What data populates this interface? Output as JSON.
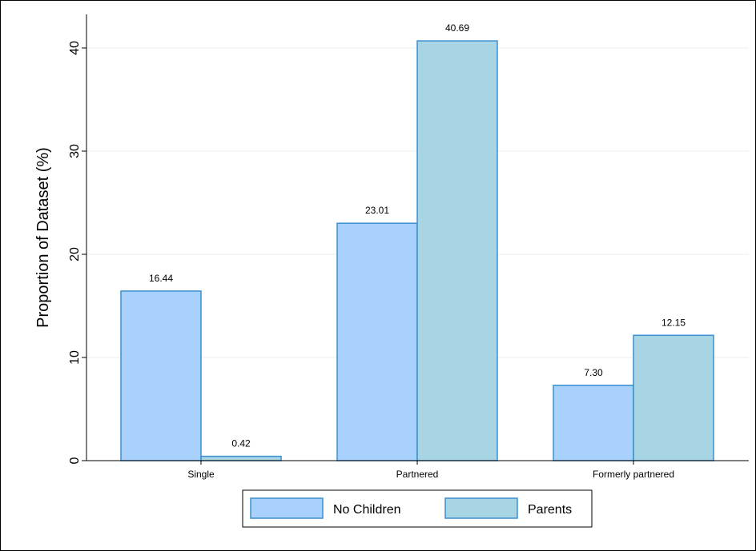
{
  "chart_data": {
    "type": "bar",
    "title": "",
    "xlabel": "",
    "ylabel": "Proportion of Dataset (%)",
    "categories": [
      "Single",
      "Partnered",
      "Formerly partnered"
    ],
    "series": [
      {
        "name": "No Children",
        "values": [
          16.44,
          23.01,
          7.3
        ],
        "labels": [
          "16.44",
          "23.01",
          "7.30"
        ],
        "color": "#a8d2fd"
      },
      {
        "name": "Parents",
        "values": [
          0.42,
          40.69,
          12.15
        ],
        "labels": [
          "0.42",
          "40.69",
          "12.15"
        ],
        "color": "#a8d5e4"
      }
    ],
    "bar_edge_color": "#3b8fcf",
    "ylim": [
      0,
      42
    ],
    "yticks": [
      0,
      10,
      20,
      30,
      40
    ],
    "grid": true,
    "legend_position": "bottom"
  }
}
